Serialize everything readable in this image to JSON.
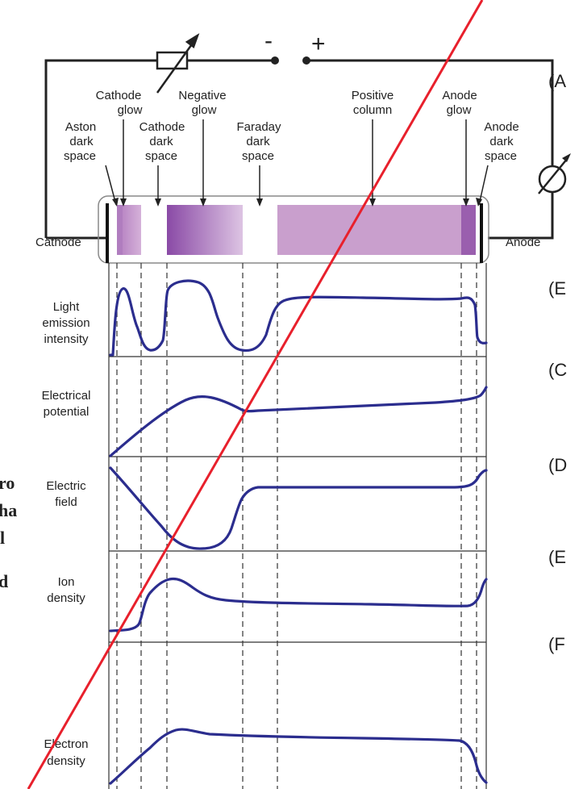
{
  "supply": {
    "minus": "-",
    "plus": "+"
  },
  "electrodes": {
    "cathode": "Cathode",
    "anode": "Anode"
  },
  "regions": {
    "cathode_glow": [
      "Cathode",
      "glow"
    ],
    "negative_glow": [
      "Negative",
      "glow"
    ],
    "aston_dark_space": [
      "Aston",
      "dark",
      "space"
    ],
    "cathode_dark_space": [
      "Cathode",
      "dark",
      "space"
    ],
    "faraday_dark_space": [
      "Faraday",
      "dark",
      "space"
    ],
    "positive_column": [
      "Positive",
      "column"
    ],
    "anode_glow": [
      "Anode",
      "glow"
    ],
    "anode_dark_space": [
      "Anode",
      "dark",
      "space"
    ]
  },
  "rows": {
    "light": [
      "Light",
      "emission",
      "intensity"
    ],
    "potential": [
      "Electrical",
      "potential"
    ],
    "field": [
      "Electric",
      "field"
    ],
    "ion": [
      "Ion",
      "density"
    ],
    "electron": [
      "Electron",
      "density"
    ]
  },
  "right_labels": [
    "(A",
    "(E",
    "(C",
    "(D",
    "(E",
    "(F"
  ],
  "left_fragments": [
    "ro",
    "ha",
    "l",
    "d"
  ],
  "colors": {
    "curve": "#2b2d8e",
    "strike": "#e8202c",
    "band": "#c99fcd",
    "band_dark": "#9a5fae",
    "band_glow": "#7a3a99"
  }
}
